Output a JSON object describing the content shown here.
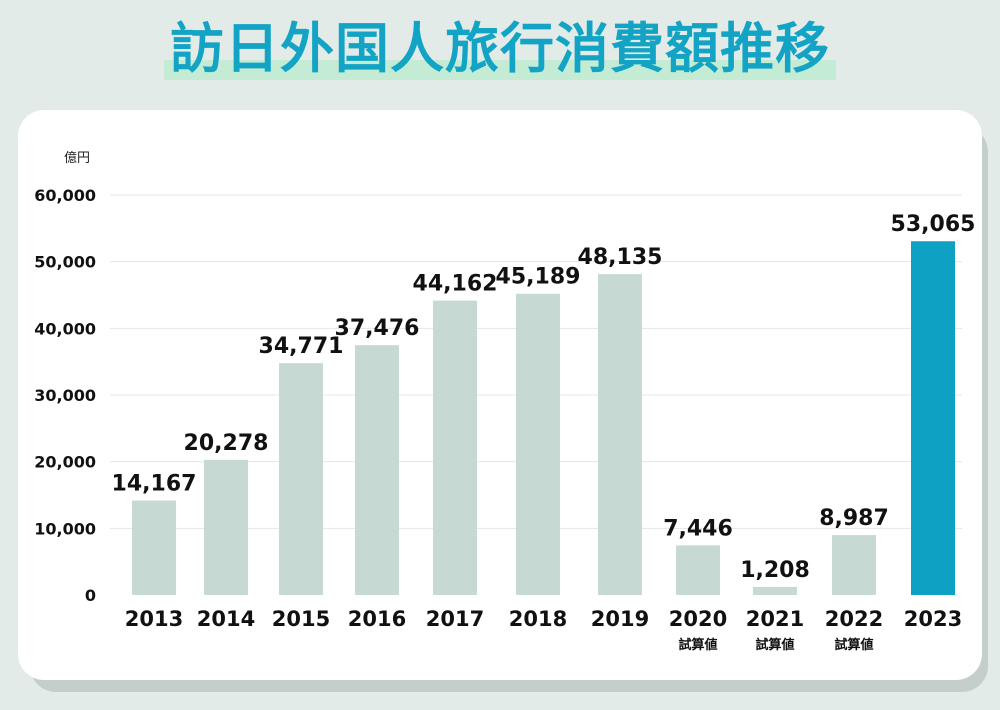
{
  "page": {
    "title": "訪日外国人旅行消費額推移"
  },
  "chart_data": {
    "type": "bar",
    "title": "訪日外国人旅行消費額推移",
    "unit_label": "億円",
    "xlabel": "",
    "ylabel": "",
    "ylim": [
      0,
      60000
    ],
    "yticks": [
      0,
      10000,
      20000,
      30000,
      40000,
      50000,
      60000
    ],
    "ytick_labels": [
      "0",
      "10,000",
      "20,000",
      "30,000",
      "40,000",
      "50,000",
      "60,000"
    ],
    "grid": true,
    "categories": [
      "2013",
      "2014",
      "2015",
      "2016",
      "2017",
      "2018",
      "2019",
      "2020",
      "2021",
      "2022",
      "2023"
    ],
    "values": [
      14167,
      20278,
      34771,
      37476,
      44162,
      45189,
      48135,
      7446,
      1208,
      8987,
      53065
    ],
    "value_labels": [
      "14,167",
      "20,278",
      "34,771",
      "37,476",
      "44,162",
      "45,189",
      "48,135",
      "7,446",
      "1,208",
      "8,987",
      "53,065"
    ],
    "notes": [
      "",
      "",
      "",
      "",
      "",
      "",
      "",
      "試算値",
      "試算値",
      "試算値",
      ""
    ],
    "colors": {
      "default": "#c6dad3",
      "highlight": "#0fa1c3",
      "grid": "#e3e8e6"
    },
    "highlight_index": 10
  }
}
